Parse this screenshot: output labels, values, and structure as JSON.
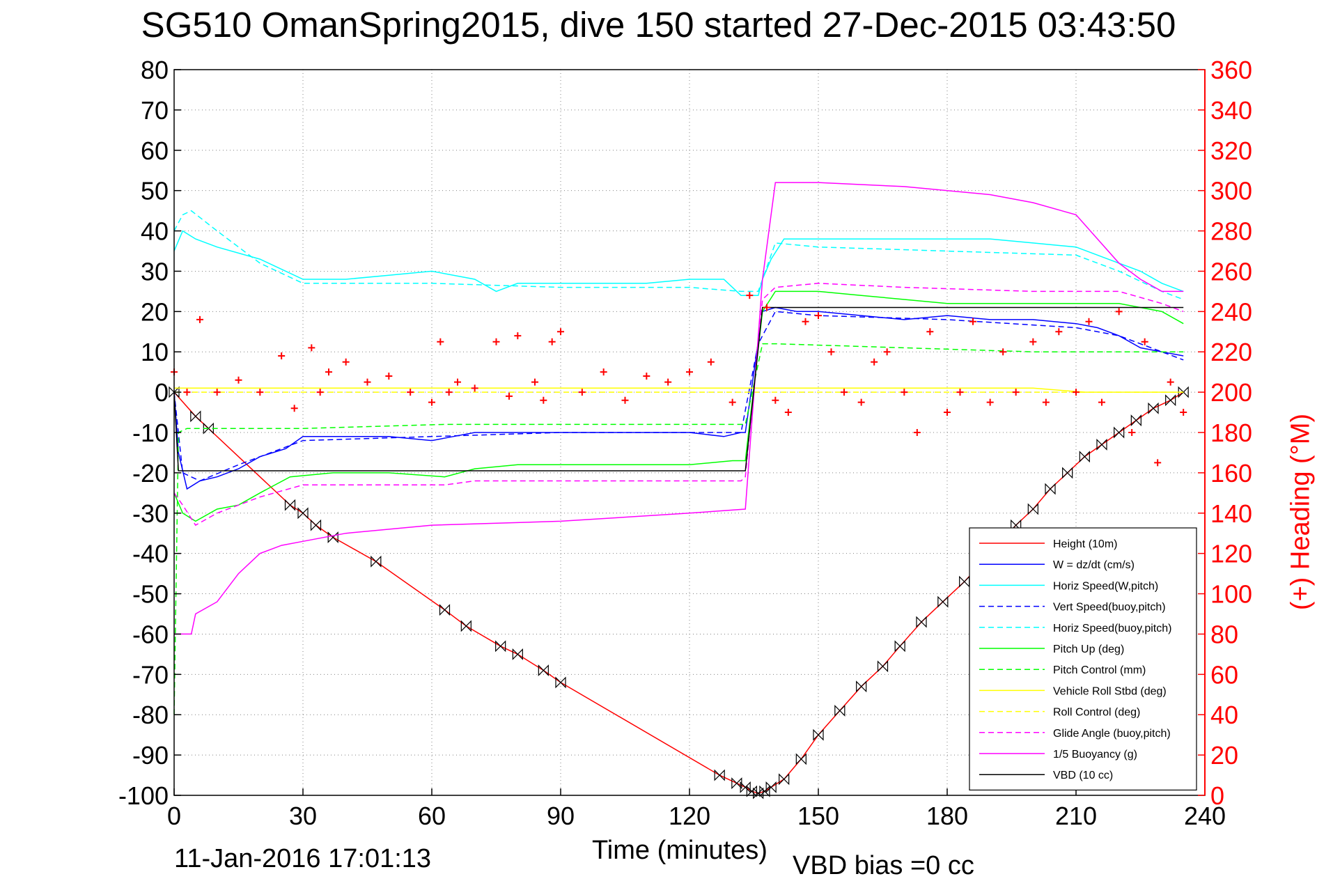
{
  "title": "SG510 OmanSpring2015, dive 150 started 27-Dec-2015 03:43:50",
  "timestamp": "11-Jan-2016 17:01:13",
  "vbd_bias": "VBD bias =0 cc",
  "colors": {
    "height": "#ff0000",
    "w": "#0000ff",
    "horiz": "#00ffff",
    "pitch": "#00ff00",
    "roll": "#ffff00",
    "glide": "#ff00ff",
    "buoy": "#ff00ff",
    "vbd": "#000000",
    "heading": "#ff0000",
    "grid": "#808080"
  },
  "chart_data": {
    "type": "line",
    "title": "SG510 OmanSpring2015, dive 150 started 27-Dec-2015 03:43:50",
    "xlabel": "Time (minutes)",
    "ylabel": "",
    "y2label": "(+) Heading (°M)",
    "xlim": [
      0,
      240
    ],
    "ylim": [
      -100,
      80
    ],
    "y2lim": [
      0,
      360
    ],
    "xticks": [
      0,
      30,
      60,
      90,
      120,
      150,
      180,
      210,
      240
    ],
    "yticks": [
      80,
      70,
      60,
      50,
      40,
      30,
      20,
      10,
      0,
      -10,
      -20,
      -30,
      -40,
      -50,
      -60,
      -70,
      -80,
      -90,
      -100
    ],
    "y2ticks": [
      360,
      340,
      320,
      300,
      280,
      260,
      240,
      220,
      200,
      180,
      160,
      140,
      120,
      100,
      80,
      60,
      40,
      20,
      0
    ],
    "grid": true,
    "legend_position": "bottom-right",
    "series": [
      {
        "name": "Height (10m)",
        "key": "height",
        "style": "solid",
        "x": [
          0,
          5,
          8,
          27,
          30,
          33,
          37,
          47,
          63,
          68,
          76,
          80,
          86,
          90,
          127,
          131,
          133,
          134.5,
          136,
          137.5,
          139,
          142,
          146,
          150,
          155,
          160,
          165,
          169,
          174,
          179,
          184,
          196,
          200,
          204,
          208,
          212,
          216,
          220,
          224,
          228,
          232,
          235
        ],
        "y": [
          0,
          -6,
          -9,
          -28,
          -30,
          -33,
          -36,
          -42,
          -54,
          -58,
          -63,
          -65,
          -69,
          -72,
          -95,
          -97,
          -98,
          -99,
          -99.5,
          -99,
          -98,
          -96,
          -91,
          -85,
          -79,
          -73,
          -68,
          -63,
          -57,
          -52,
          -47,
          -33,
          -29,
          -24,
          -20,
          -16,
          -13,
          -10,
          -7,
          -4,
          -2,
          0
        ]
      },
      {
        "name": "W = dz/dt (cm/s)",
        "key": "w",
        "style": "solid",
        "x": [
          0,
          1,
          3,
          6,
          10,
          15,
          20,
          26,
          30,
          40,
          50,
          60,
          65,
          70,
          80,
          90,
          100,
          110,
          120,
          128,
          132,
          133,
          137,
          140,
          145,
          150,
          160,
          170,
          180,
          190,
          200,
          210,
          215,
          220,
          225,
          230,
          235
        ],
        "y": [
          0,
          -15,
          -24,
          -22,
          -21,
          -19,
          -16,
          -14,
          -11,
          -11,
          -11,
          -12,
          -11,
          -10,
          -10,
          -10,
          -10,
          -10,
          -10,
          -11,
          -10,
          -10,
          20,
          21,
          20,
          20,
          19,
          18,
          19,
          18,
          18,
          17,
          16,
          14,
          11,
          10,
          9
        ]
      },
      {
        "name": "Horiz Speed(W,pitch)",
        "key": "horiz_w",
        "style": "solid",
        "x": [
          0,
          2,
          5,
          10,
          20,
          30,
          40,
          50,
          60,
          70,
          75,
          80,
          90,
          100,
          110,
          120,
          128,
          132,
          133,
          136,
          137,
          139,
          142,
          150,
          160,
          170,
          180,
          190,
          200,
          210,
          215,
          220,
          225,
          230,
          235
        ],
        "y": [
          35,
          40,
          38,
          36,
          33,
          28,
          28,
          29,
          30,
          28,
          25,
          27,
          27,
          27,
          27,
          28,
          28,
          24,
          24,
          24,
          28,
          33,
          38,
          38,
          38,
          38,
          38,
          38,
          37,
          36,
          34,
          32,
          30,
          27,
          25
        ]
      },
      {
        "name": "Vert Speed(buoy,pitch)",
        "key": "vert_buoy",
        "style": "dashed",
        "x": [
          0,
          2,
          6,
          15,
          30,
          60,
          90,
          120,
          132,
          136,
          140,
          150,
          180,
          210,
          220,
          230,
          235
        ],
        "y": [
          0,
          -20,
          -22,
          -18,
          -12,
          -11,
          -10,
          -10,
          -10,
          12,
          20,
          19,
          18,
          16,
          14,
          10,
          8
        ]
      },
      {
        "name": "Horiz Speed(buoy,pitch)",
        "key": "horiz_buoy",
        "style": "dashed",
        "x": [
          0,
          2,
          4,
          10,
          20,
          30,
          60,
          90,
          120,
          132,
          136,
          140,
          150,
          180,
          210,
          220,
          230,
          235
        ],
        "y": [
          40,
          44,
          45,
          40,
          32,
          27,
          27,
          26,
          26,
          25,
          25,
          37,
          36,
          35,
          34,
          30,
          25,
          23
        ]
      },
      {
        "name": "Pitch Up (deg)",
        "key": "pitch_up",
        "style": "solid",
        "x": [
          0,
          2,
          5,
          10,
          15,
          20,
          27,
          37,
          50,
          63,
          70,
          80,
          90,
          120,
          130,
          133,
          137,
          140,
          150,
          160,
          170,
          180,
          190,
          200,
          210,
          220,
          230,
          235
        ],
        "y": [
          -25,
          -30,
          -32,
          -29,
          -28,
          -25,
          -21,
          -20,
          -20,
          -21,
          -19,
          -18,
          -18,
          -18,
          -17,
          -17,
          20,
          25,
          25,
          24,
          23,
          22,
          22,
          22,
          22,
          22,
          20,
          17
        ]
      },
      {
        "name": "Pitch Control (mm)",
        "key": "pitch_ctrl",
        "style": "dashed",
        "x": [
          0,
          1,
          3,
          10,
          30,
          63,
          70,
          100,
          132,
          133,
          137,
          140,
          170,
          200,
          220,
          235
        ],
        "y": [
          -80,
          -10,
          -9,
          -9,
          -9,
          -8,
          -8,
          -8,
          -8,
          -8,
          12,
          12,
          11,
          10,
          10,
          10
        ]
      },
      {
        "name": "Vehicle Roll Stbd (deg)",
        "key": "roll",
        "style": "solid",
        "x": [
          0,
          10,
          30,
          60,
          90,
          120,
          133,
          140,
          160,
          180,
          200,
          212,
          220,
          235
        ],
        "y": [
          1,
          1,
          1,
          1,
          1,
          1,
          1,
          1,
          1,
          1,
          1,
          0,
          0,
          0
        ]
      },
      {
        "name": "Roll Control (deg)",
        "key": "roll_ctrl",
        "style": "dashed",
        "x": [
          0,
          10,
          30,
          60,
          90,
          120,
          133,
          140,
          170,
          200,
          235
        ],
        "y": [
          0,
          0,
          0,
          0,
          0,
          0,
          0,
          0,
          0,
          0,
          0
        ]
      },
      {
        "name": "Glide Angle (buoy,pitch)",
        "key": "glide",
        "style": "dashed",
        "x": [
          0,
          2,
          5,
          10,
          20,
          30,
          50,
          63,
          70,
          80,
          90,
          120,
          132,
          133,
          137,
          140,
          150,
          170,
          200,
          220,
          230,
          235
        ],
        "y": [
          -25,
          -28,
          -33,
          -30,
          -26,
          -23,
          -23,
          -23,
          -22,
          -22,
          -22,
          -22,
          -22,
          -21,
          23,
          26,
          27,
          26,
          25,
          25,
          22,
          20
        ]
      },
      {
        "name": "1/5 Buoyancy (g)",
        "key": "buoy",
        "style": "solid",
        "x": [
          0,
          1,
          4,
          5,
          10,
          15,
          20,
          25,
          30,
          40,
          60,
          90,
          120,
          133,
          137,
          140,
          150,
          170,
          190,
          200,
          210,
          215,
          220,
          225,
          230,
          235
        ],
        "y": [
          -60,
          -60,
          -60,
          -55,
          -52,
          -45,
          -40,
          -38,
          -37,
          -35,
          -33,
          -32,
          -30,
          -29,
          28,
          52,
          52,
          51,
          49,
          47,
          44,
          38,
          32,
          28,
          25,
          25
        ]
      },
      {
        "name": "VBD (10 cc)",
        "key": "vbd",
        "style": "solid",
        "x": [
          0,
          1,
          133,
          137,
          140,
          235
        ],
        "y": [
          0,
          -19.5,
          -19.5,
          21,
          21,
          21
        ]
      },
      {
        "name": "(+) Heading (°M)",
        "key": "heading",
        "style": "markers",
        "axis": "right",
        "x": [
          0,
          3,
          6,
          10,
          15,
          20,
          25,
          28,
          32,
          34,
          36,
          40,
          45,
          50,
          55,
          60,
          62,
          64,
          66,
          70,
          75,
          78,
          80,
          84,
          86,
          88,
          90,
          95,
          100,
          105,
          110,
          115,
          120,
          125,
          130,
          134,
          138,
          140,
          143,
          147,
          150,
          153,
          156,
          160,
          163,
          166,
          170,
          173,
          176,
          180,
          183,
          186,
          190,
          193,
          196,
          200,
          203,
          206,
          210,
          213,
          216,
          220,
          223,
          226,
          229,
          232,
          235
        ],
        "y": [
          210,
          200,
          236,
          200,
          206,
          200,
          218,
          192,
          222,
          200,
          210,
          215,
          205,
          208,
          200,
          195,
          225,
          200,
          205,
          202,
          225,
          198,
          228,
          205,
          196,
          225,
          230,
          200,
          210,
          196,
          208,
          205,
          210,
          215,
          195,
          248,
          242,
          196,
          190,
          235,
          238,
          220,
          200,
          195,
          215,
          220,
          200,
          180,
          230,
          190,
          200,
          235,
          195,
          220,
          200,
          225,
          195,
          230,
          200,
          235,
          195,
          240,
          180,
          225,
          165,
          205,
          190
        ]
      }
    ]
  }
}
